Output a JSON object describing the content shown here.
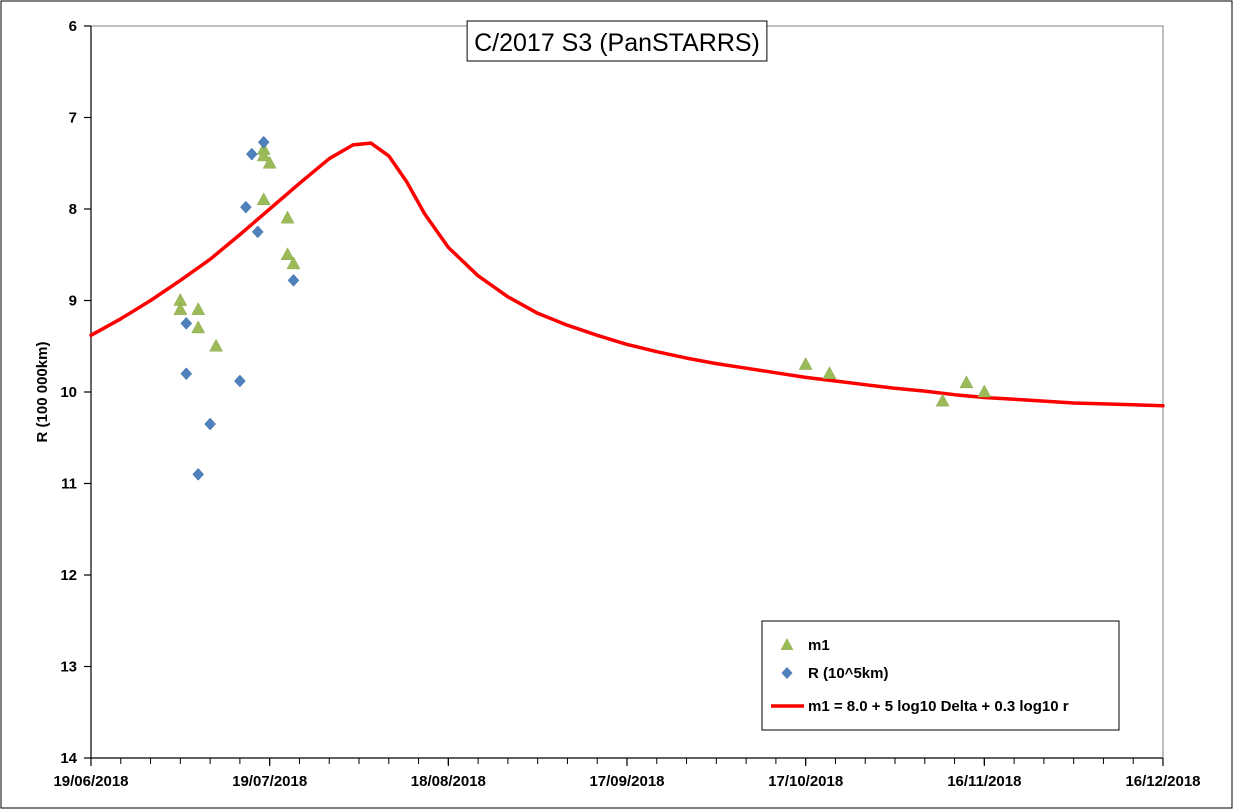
{
  "chart_data": {
    "type": "scatter",
    "title": "C/2017 S3 (PanSTARRS)",
    "xlabel": "",
    "ylabel": "R (100 000km)",
    "x_axis": {
      "type": "date",
      "min": "2018-06-19",
      "max": "2018-12-16",
      "tick_labels": [
        "19/06/2018",
        "19/07/2018",
        "18/08/2018",
        "17/09/2018",
        "17/10/2018",
        "16/11/2018",
        "16/12/2018"
      ],
      "minor_tick_days": 5
    },
    "y_axis": {
      "min": 6,
      "max": 14,
      "reversed": true,
      "ticks": [
        6,
        7,
        8,
        9,
        10,
        11,
        12,
        13,
        14
      ]
    },
    "grid": false,
    "legend_position": "bottom-right",
    "series": [
      {
        "name": "m1",
        "marker": "triangle",
        "color": "#9BBB59",
        "points": [
          [
            "2018-07-04",
            9.0
          ],
          [
            "2018-07-04",
            9.1
          ],
          [
            "2018-07-07",
            9.1
          ],
          [
            "2018-07-07",
            9.3
          ],
          [
            "2018-07-10",
            9.5
          ],
          [
            "2018-07-18",
            7.35
          ],
          [
            "2018-07-18",
            7.42
          ],
          [
            "2018-07-19",
            7.5
          ],
          [
            "2018-07-18",
            7.9
          ],
          [
            "2018-07-22",
            8.1
          ],
          [
            "2018-07-22",
            8.5
          ],
          [
            "2018-07-23",
            8.6
          ],
          [
            "2018-10-17",
            9.7
          ],
          [
            "2018-10-21",
            9.8
          ],
          [
            "2018-11-09",
            10.1
          ],
          [
            "2018-11-13",
            9.9
          ],
          [
            "2018-11-16",
            10.0
          ]
        ]
      },
      {
        "name": "R (10^5km)",
        "marker": "diamond",
        "color": "#4F81BD",
        "points": [
          [
            "2018-07-05",
            9.25
          ],
          [
            "2018-07-05",
            9.8
          ],
          [
            "2018-07-07",
            10.9
          ],
          [
            "2018-07-09",
            10.35
          ],
          [
            "2018-07-14",
            9.88
          ],
          [
            "2018-07-15",
            7.98
          ],
          [
            "2018-07-16",
            7.4
          ],
          [
            "2018-07-17",
            8.25
          ],
          [
            "2018-07-18",
            7.27
          ],
          [
            "2018-07-23",
            8.78
          ]
        ]
      },
      {
        "name": "m1 = 8.0 + 5 log10 Delta + 0.3 log10 r",
        "marker": "line",
        "color": "#FF0000",
        "points": [
          [
            "2018-06-19",
            9.38
          ],
          [
            "2018-06-24",
            9.2
          ],
          [
            "2018-06-29",
            9.0
          ],
          [
            "2018-07-04",
            8.78
          ],
          [
            "2018-07-09",
            8.55
          ],
          [
            "2018-07-14",
            8.28
          ],
          [
            "2018-07-19",
            8.0
          ],
          [
            "2018-07-24",
            7.72
          ],
          [
            "2018-07-29",
            7.45
          ],
          [
            "2018-08-02",
            7.3
          ],
          [
            "2018-08-05",
            7.28
          ],
          [
            "2018-08-08",
            7.42
          ],
          [
            "2018-08-11",
            7.7
          ],
          [
            "2018-08-14",
            8.05
          ],
          [
            "2018-08-18",
            8.42
          ],
          [
            "2018-08-23",
            8.73
          ],
          [
            "2018-08-28",
            8.96
          ],
          [
            "2018-09-02",
            9.14
          ],
          [
            "2018-09-07",
            9.27
          ],
          [
            "2018-09-12",
            9.38
          ],
          [
            "2018-09-17",
            9.48
          ],
          [
            "2018-09-22",
            9.56
          ],
          [
            "2018-09-27",
            9.63
          ],
          [
            "2018-10-02",
            9.69
          ],
          [
            "2018-10-07",
            9.74
          ],
          [
            "2018-10-12",
            9.79
          ],
          [
            "2018-10-17",
            9.84
          ],
          [
            "2018-10-22",
            9.88
          ],
          [
            "2018-10-27",
            9.92
          ],
          [
            "2018-11-01",
            9.96
          ],
          [
            "2018-11-06",
            9.99
          ],
          [
            "2018-11-11",
            10.03
          ],
          [
            "2018-11-16",
            10.06
          ],
          [
            "2018-11-21",
            10.08
          ],
          [
            "2018-11-26",
            10.1
          ],
          [
            "2018-12-01",
            10.12
          ],
          [
            "2018-12-06",
            10.13
          ],
          [
            "2018-12-11",
            10.14
          ],
          [
            "2018-12-16",
            10.15
          ]
        ]
      }
    ]
  }
}
